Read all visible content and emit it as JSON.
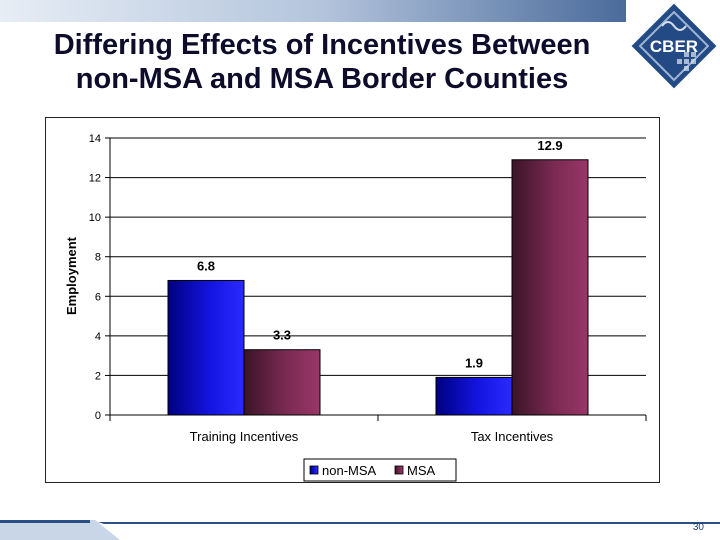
{
  "slide": {
    "title_line1": "Differing Effects of Incentives Between",
    "title_line2": "non-MSA and MSA Border Counties",
    "logo_text": "CBER",
    "page_number": "30"
  },
  "colors": {
    "band_dark": "#2a4f86",
    "band_light": "#c9d6e8",
    "non_msa": "#1010d8",
    "msa": "#8e3060"
  },
  "chart_data": {
    "type": "bar",
    "title": "",
    "xlabel": "",
    "ylabel": "Employment",
    "categories": [
      "Training Incentives",
      "Tax Incentives"
    ],
    "series": [
      {
        "name": "non-MSA",
        "values": [
          6.8,
          1.9
        ],
        "labels": [
          "6.8",
          "1.9"
        ]
      },
      {
        "name": "MSA",
        "values": [
          3.3,
          12.9
        ],
        "labels": [
          "3.3",
          "12.9"
        ]
      }
    ],
    "ylim": [
      0,
      14
    ],
    "yticks": [
      0,
      2,
      4,
      6,
      8,
      10,
      12,
      14
    ],
    "grid": true,
    "legend": "bottom"
  }
}
